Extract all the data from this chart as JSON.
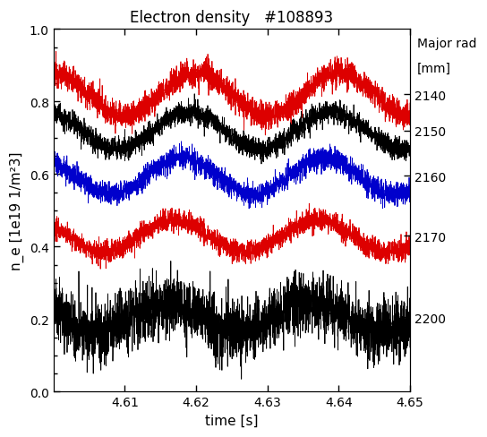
{
  "title": "Electron density   #108893",
  "xlabel": "time [s]",
  "ylabel": "n_e [1e19 1/m²3]",
  "xlim": [
    4.6,
    4.65
  ],
  "ylim": [
    0.0,
    1.0
  ],
  "xticks": [
    4.61,
    4.62,
    4.63,
    4.64,
    4.65
  ],
  "yticks": [
    0.0,
    0.2,
    0.4,
    0.6,
    0.8,
    1.0
  ],
  "legend_title1": "Major rad",
  "legend_title2": "[mm]",
  "channels": [
    {
      "label": "2140",
      "color": "#dd0000",
      "base": 0.82,
      "amp": 0.06,
      "noise": 0.018,
      "freq": 50.0,
      "phase": 0.0
    },
    {
      "label": "2150",
      "color": "#000000",
      "base": 0.72,
      "amp": 0.05,
      "noise": 0.015,
      "freq": 50.0,
      "phase": 0.05
    },
    {
      "label": "2160",
      "color": "#0000cc",
      "base": 0.595,
      "amp": 0.05,
      "noise": 0.015,
      "freq": 50.0,
      "phase": 0.1
    },
    {
      "label": "2170",
      "color": "#dd0000",
      "base": 0.43,
      "amp": 0.045,
      "noise": 0.015,
      "freq": 50.0,
      "phase": 0.15
    },
    {
      "label": "2200",
      "color": "#000000",
      "base": 0.205,
      "amp": 0.04,
      "noise": 0.04,
      "freq": 50.0,
      "phase": 0.2
    }
  ],
  "background_color": "#ffffff",
  "figsize": [
    5.44,
    4.89
  ],
  "dpi": 100,
  "n_points": 3000
}
